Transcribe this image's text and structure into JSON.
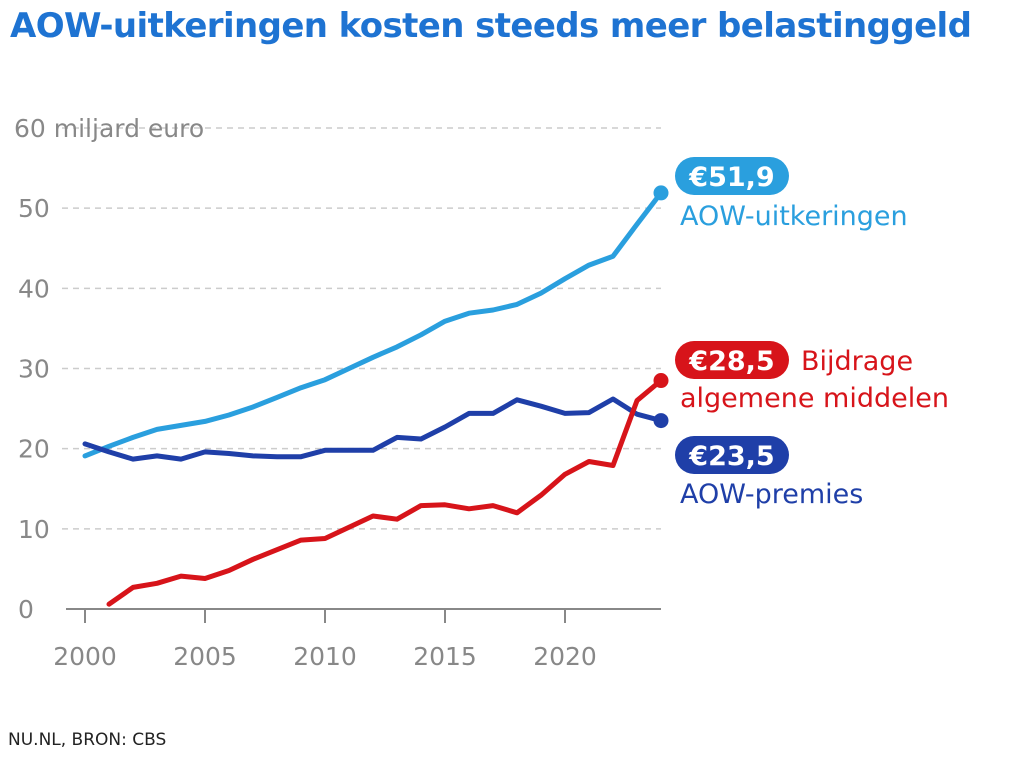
{
  "title": "AOW-uitkeringen kosten steeds meer belastinggeld",
  "source": "NU.NL, BRON: CBS",
  "colors": {
    "uitkeringen": "#2a9fde",
    "premies": "#1f3fa8",
    "bijdrage": "#d7141a",
    "grid": "#cccccc",
    "axis": "#888888"
  },
  "chart_data": {
    "type": "line",
    "ylabel": "60 miljard euro",
    "ylim": [
      0,
      60
    ],
    "yticks": [
      0,
      10,
      20,
      30,
      40,
      50
    ],
    "xlim": [
      2000,
      2024
    ],
    "xticks": [
      2000,
      2005,
      2010,
      2015,
      2020
    ],
    "grid": true,
    "series": [
      {
        "key": "uitkeringen",
        "name": "AOW-uitkeringen",
        "badge": "€51,9",
        "x": [
          2000,
          2001,
          2002,
          2003,
          2004,
          2005,
          2006,
          2007,
          2008,
          2009,
          2010,
          2011,
          2012,
          2013,
          2014,
          2015,
          2016,
          2017,
          2018,
          2019,
          2020,
          2021,
          2022,
          2023,
          2024
        ],
        "values": [
          19.1,
          20.3,
          21.4,
          22.4,
          22.9,
          23.4,
          24.2,
          25.2,
          26.4,
          27.6,
          28.6,
          30.0,
          31.4,
          32.7,
          34.2,
          35.9,
          36.9,
          37.3,
          38.0,
          39.4,
          41.2,
          42.9,
          44.0,
          48.0,
          51.9
        ]
      },
      {
        "key": "premies",
        "name": "AOW-premies",
        "badge": "€23,5",
        "x": [
          2000,
          2001,
          2002,
          2003,
          2004,
          2005,
          2006,
          2007,
          2008,
          2009,
          2010,
          2011,
          2012,
          2013,
          2014,
          2015,
          2016,
          2017,
          2018,
          2019,
          2020,
          2021,
          2022,
          2023,
          2024
        ],
        "values": [
          20.6,
          19.6,
          18.7,
          19.1,
          18.7,
          19.6,
          19.4,
          19.1,
          19.0,
          19.0,
          19.8,
          19.8,
          19.8,
          21.4,
          21.2,
          22.7,
          24.4,
          24.4,
          26.1,
          25.3,
          24.4,
          24.5,
          26.2,
          24.3,
          23.5
        ]
      },
      {
        "key": "bijdrage",
        "name": "Bijdrage algemene middelen",
        "name_lines": [
          "Bijdrage",
          "algemene middelen"
        ],
        "badge": "€28,5",
        "x": [
          2001,
          2002,
          2003,
          2004,
          2005,
          2006,
          2007,
          2008,
          2009,
          2010,
          2011,
          2012,
          2013,
          2014,
          2015,
          2016,
          2017,
          2018,
          2019,
          2020,
          2021,
          2022,
          2023,
          2024
        ],
        "values": [
          0.6,
          2.7,
          3.2,
          4.1,
          3.8,
          4.8,
          6.2,
          7.4,
          8.6,
          8.8,
          10.2,
          11.6,
          11.2,
          12.9,
          13.0,
          12.5,
          12.9,
          12.0,
          14.2,
          16.8,
          18.4,
          17.9,
          26.0,
          28.5
        ]
      }
    ]
  }
}
